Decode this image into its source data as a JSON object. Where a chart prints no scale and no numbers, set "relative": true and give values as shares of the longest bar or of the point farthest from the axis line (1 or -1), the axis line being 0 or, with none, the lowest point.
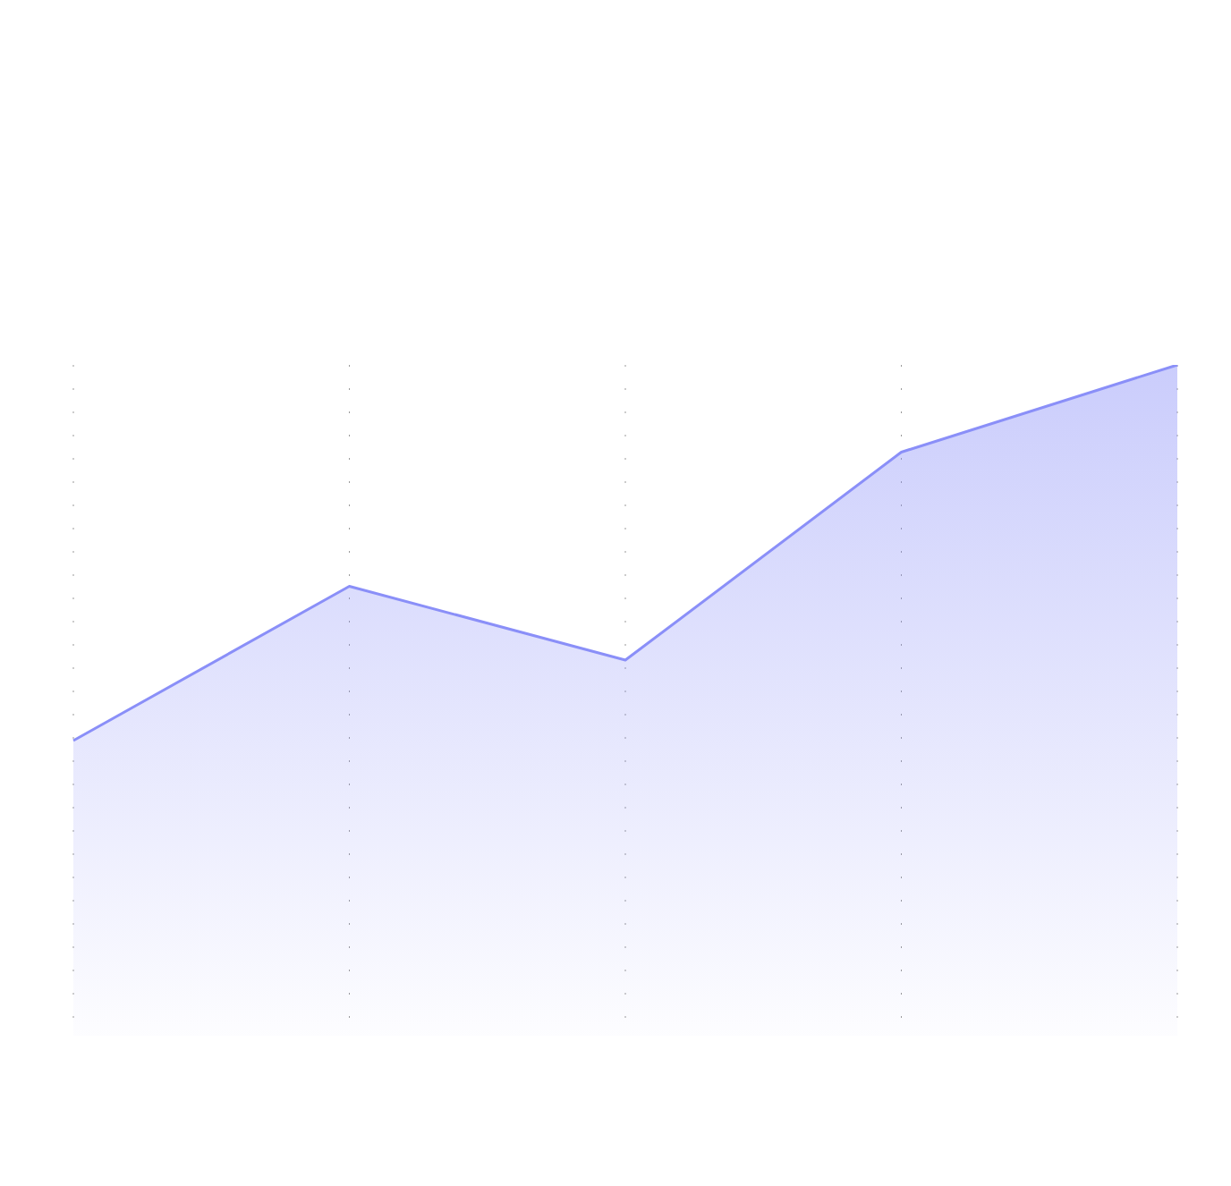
{
  "chart_data": {
    "type": "area",
    "relative": true,
    "categories": [
      null,
      null,
      null,
      null,
      null
    ],
    "series": [
      {
        "color": "#8a8ff8",
        "values": [
          0.44,
          0.67,
          0.56,
          0.87,
          1
        ]
      }
    ],
    "grid": "x",
    "marker": "none",
    "line_style": "solid"
  }
}
